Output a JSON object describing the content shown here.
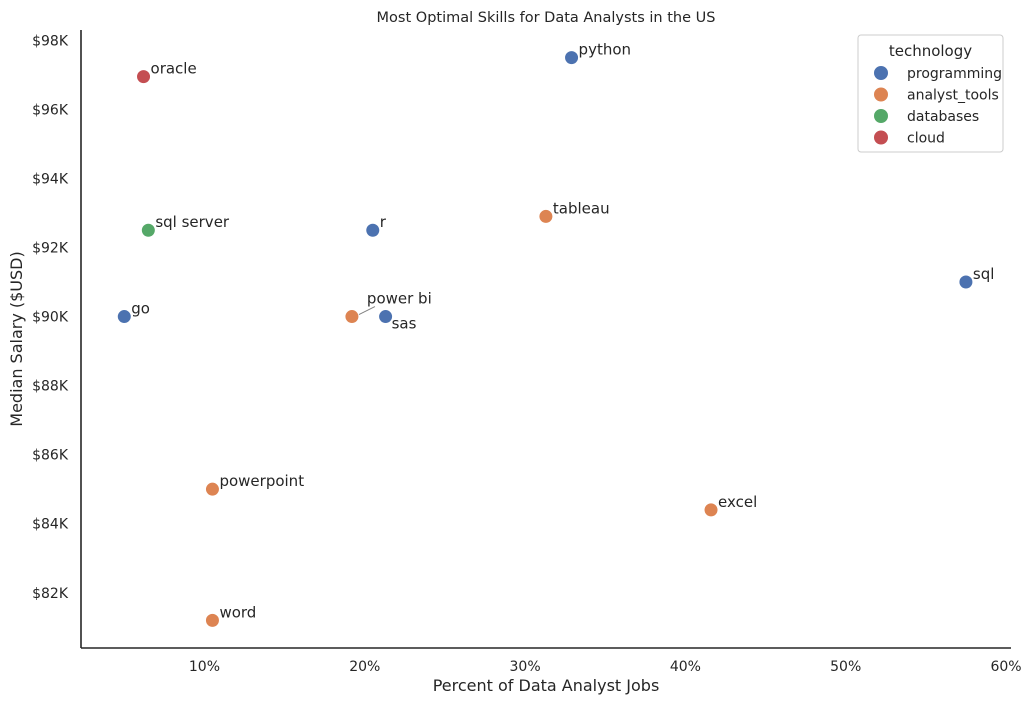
{
  "chart_data": {
    "type": "scatter",
    "title": "Most Optimal Skills for Data Analysts in the US",
    "xlabel": "Percent of Data Analyst Jobs",
    "ylabel": "Median Salary ($USD)",
    "xlim": [
      2.3,
      60
    ],
    "ylim": [
      80400,
      98300
    ],
    "x_ticks": [
      10,
      20,
      30,
      40,
      50,
      60
    ],
    "x_tick_labels": [
      "10%",
      "20%",
      "30%",
      "40%",
      "50%",
      "60%"
    ],
    "y_ticks": [
      82000,
      84000,
      86000,
      88000,
      90000,
      92000,
      94000,
      96000,
      98000
    ],
    "y_tick_labels": [
      "$82K",
      "$84K",
      "$86K",
      "$88K",
      "$90K",
      "$92K",
      "$94K",
      "$96K",
      "$98K"
    ],
    "grid": false,
    "legend": {
      "title": "technology",
      "placement": "top-right",
      "entries": [
        {
          "name": "programming",
          "color": "#4c72b0"
        },
        {
          "name": "analyst_tools",
          "color": "#dd8452"
        },
        {
          "name": "databases",
          "color": "#55a868"
        },
        {
          "name": "cloud",
          "color": "#c44e52"
        }
      ]
    },
    "points": [
      {
        "label": "python",
        "x": 32.9,
        "y": 97500,
        "technology": "programming"
      },
      {
        "label": "oracle",
        "x": 6.2,
        "y": 96950,
        "technology": "cloud"
      },
      {
        "label": "tableau",
        "x": 31.3,
        "y": 92900,
        "technology": "analyst_tools"
      },
      {
        "label": "sql server",
        "x": 6.5,
        "y": 92500,
        "technology": "databases"
      },
      {
        "label": "r",
        "x": 20.5,
        "y": 92500,
        "technology": "programming"
      },
      {
        "label": "sql",
        "x": 57.5,
        "y": 91000,
        "technology": "programming"
      },
      {
        "label": "go",
        "x": 5.0,
        "y": 90000,
        "technology": "programming"
      },
      {
        "label": "power bi",
        "x": 19.2,
        "y": 90000,
        "technology": "analyst_tools"
      },
      {
        "label": "sas",
        "x": 21.3,
        "y": 90000,
        "technology": "programming"
      },
      {
        "label": "powerpoint",
        "x": 10.5,
        "y": 85000,
        "technology": "analyst_tools"
      },
      {
        "label": "excel",
        "x": 41.6,
        "y": 84400,
        "technology": "analyst_tools"
      },
      {
        "label": "word",
        "x": 10.5,
        "y": 81200,
        "technology": "analyst_tools"
      }
    ]
  }
}
